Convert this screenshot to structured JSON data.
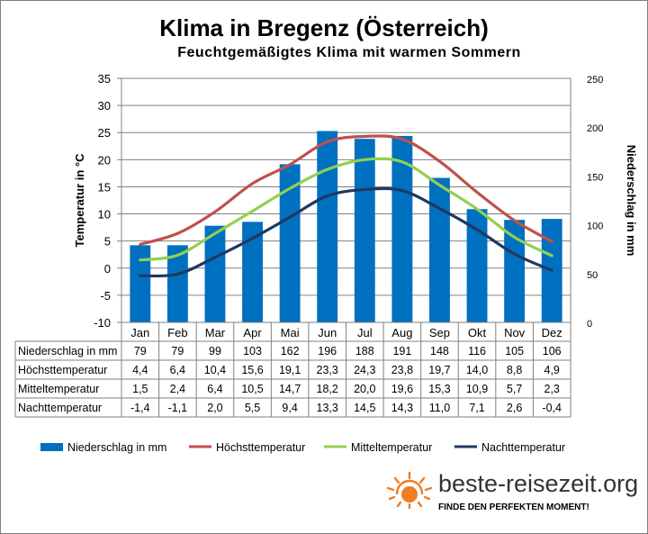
{
  "title": "Klima in Bregenz (Österreich)",
  "subtitle": "Feuchtgemäßigtes Klima mit warmen Sommern",
  "brand": {
    "name": "beste-reisezeit.org",
    "tagline": "FINDE DEN PERFEKTEN MOMENT!"
  },
  "chart_data": {
    "type": "bar",
    "categories": [
      "Jan",
      "Feb",
      "Mar",
      "Apr",
      "Mai",
      "Jun",
      "Jul",
      "Aug",
      "Sep",
      "Okt",
      "Nov",
      "Dez"
    ],
    "y_left": {
      "label": "Temperatur in °C",
      "range": [
        -10,
        35
      ],
      "ticks": [
        -10,
        -5,
        0,
        5,
        10,
        15,
        20,
        25,
        30,
        35
      ]
    },
    "y_right": {
      "label": "Niederschlag in mm",
      "range": [
        0,
        250
      ],
      "ticks": [
        0,
        50,
        100,
        150,
        200,
        250
      ]
    },
    "grid": true,
    "legend_position": "bottom",
    "series": [
      {
        "name": "Niederschlag in mm",
        "type": "bar",
        "axis": "right",
        "color": "#0070c0",
        "values": [
          79,
          79,
          99,
          103,
          162,
          196,
          188,
          191,
          148,
          116,
          105,
          106
        ],
        "labels": [
          "79",
          "79",
          "99",
          "103",
          "162",
          "196",
          "188",
          "191",
          "148",
          "116",
          "105",
          "106"
        ]
      },
      {
        "name": "Höchsttemperatur",
        "type": "line",
        "axis": "left",
        "color": "#c0504d",
        "values": [
          4.4,
          6.4,
          10.4,
          15.6,
          19.1,
          23.3,
          24.3,
          23.8,
          19.7,
          14.0,
          8.8,
          4.9
        ],
        "labels": [
          "4,4",
          "6,4",
          "10,4",
          "15,6",
          "19,1",
          "23,3",
          "24,3",
          "23,8",
          "19,7",
          "14,0",
          "8,8",
          "4,9"
        ]
      },
      {
        "name": "Mitteltemperatur",
        "type": "line",
        "axis": "left",
        "color": "#92d050",
        "values": [
          1.5,
          2.4,
          6.4,
          10.5,
          14.7,
          18.2,
          20.0,
          19.6,
          15.3,
          10.9,
          5.7,
          2.3
        ],
        "labels": [
          "1,5",
          "2,4",
          "6,4",
          "10,5",
          "14,7",
          "18,2",
          "20,0",
          "19,6",
          "15,3",
          "10,9",
          "5,7",
          "2,3"
        ]
      },
      {
        "name": "Nachttemperatur",
        "type": "line",
        "axis": "left",
        "color": "#1f3864",
        "values": [
          -1.4,
          -1.1,
          2.0,
          5.5,
          9.4,
          13.3,
          14.5,
          14.3,
          11.0,
          7.1,
          2.6,
          -0.4
        ],
        "labels": [
          "-1,4",
          "-1,1",
          "2,0",
          "5,5",
          "9,4",
          "13,3",
          "14,5",
          "14,3",
          "11,0",
          "7,1",
          "2,6",
          "-0,4"
        ]
      }
    ]
  }
}
